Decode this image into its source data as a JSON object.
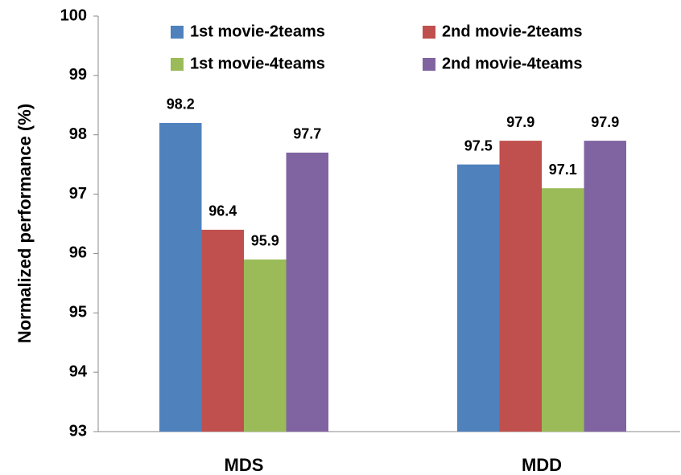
{
  "chart_data": {
    "type": "bar",
    "y_axis_label": "Normalized performance (%)",
    "categories": [
      "MDS",
      "MDD"
    ],
    "series": [
      {
        "name": "1st movie-2teams",
        "color": "#4f81bd",
        "values": [
          98.2,
          97.5
        ]
      },
      {
        "name": "2nd movie-2teams",
        "color": "#c0504d",
        "values": [
          96.4,
          97.9
        ]
      },
      {
        "name": "1st movie-4teams",
        "color": "#9bbb59",
        "values": [
          95.9,
          97.1
        ]
      },
      {
        "name": "2nd movie-4teams",
        "color": "#8064a2",
        "values": [
          97.7,
          97.9
        ]
      }
    ],
    "ylim": [
      93,
      100
    ],
    "yticks": [
      93,
      94,
      95,
      96,
      97,
      98,
      99,
      100
    ],
    "grid": false,
    "legend": "top"
  }
}
